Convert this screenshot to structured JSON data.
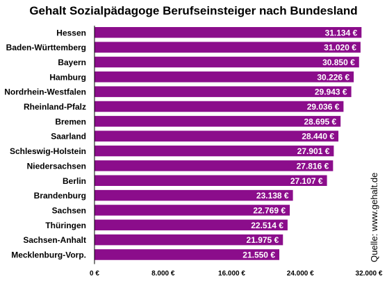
{
  "chart_data": {
    "type": "bar",
    "orientation": "horizontal",
    "title": "Gehalt Sozialpädagoge Berufseinsteiger nach Bundesland",
    "categories": [
      "Hessen",
      "Baden-Württemberg",
      "Bayern",
      "Hamburg",
      "Nordrhein-Westfalen",
      "Rheinland-Pfalz",
      "Bremen",
      "Saarland",
      "Schleswig-Holstein",
      "Niedersachsen",
      "Berlin",
      "Brandenburg",
      "Sachsen",
      "Thüringen",
      "Sachsen-Anhalt",
      "Mecklenburg-Vorp."
    ],
    "values": [
      31134,
      31020,
      30850,
      30226,
      29943,
      29036,
      28695,
      28440,
      27901,
      27816,
      27107,
      23138,
      22769,
      22514,
      21975,
      21550
    ],
    "value_labels": [
      "31.134 €",
      "31.020 €",
      "30.850 €",
      "30.226 €",
      "29.943 €",
      "29.036 €",
      "28.695 €",
      "28.440 €",
      "27.901 €",
      "27.816 €",
      "27.107 €",
      "23.138 €",
      "22.769 €",
      "22.514 €",
      "21.975 €",
      "21.550 €"
    ],
    "xlim": [
      0,
      32000
    ],
    "xticks": [
      0,
      8000,
      16000,
      24000,
      32000
    ],
    "xtick_labels": [
      "0 €",
      "8.000 €",
      "16.000 €",
      "24.000 €",
      "32.000 €"
    ],
    "grid": false,
    "bar_color": "#8b0d8b",
    "source": "Quelle: www.gehalt.de"
  }
}
